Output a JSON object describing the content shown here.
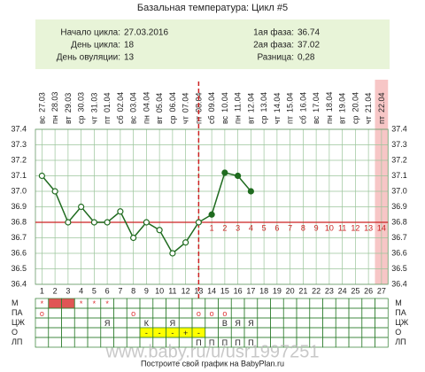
{
  "chart_data": {
    "type": "line",
    "title": "Базальная температура: Цикл #5",
    "info_left": [
      {
        "label": "Начало цикла:",
        "value": "27.03.2016"
      },
      {
        "label": "День цикла:",
        "value": 18
      },
      {
        "label": "День овуляции:",
        "value": 13
      }
    ],
    "info_right": [
      {
        "label": "1ая фаза:",
        "value": 36.74
      },
      {
        "label": "2ая фаза:",
        "value": 37.02
      },
      {
        "label": "Разница:",
        "value": "0,28"
      }
    ],
    "weekdays": [
      "вс",
      "пн",
      "вт",
      "ср",
      "чт",
      "пт",
      "сб",
      "вс",
      "пн",
      "вт",
      "ср",
      "чт",
      "пт",
      "сб",
      "вс",
      "пн",
      "вт",
      "ср",
      "чт",
      "пт",
      "сб",
      "вс",
      "пн",
      "вт",
      "ср",
      "чт",
      "пт"
    ],
    "dates": [
      "27.03",
      "28.03",
      "29.03",
      "30.03",
      "31.03",
      "01.04",
      "02.04",
      "03.04",
      "04.04",
      "05.04",
      "06.04",
      "07.04",
      "08.04",
      "09.04",
      "10.04",
      "11.04",
      "12.04",
      "13.04",
      "14.04",
      "15.04",
      "16.04",
      "17.04",
      "18.04",
      "19.04",
      "20.04",
      "21.04",
      "22.04"
    ],
    "categories": [
      1,
      2,
      3,
      4,
      5,
      6,
      7,
      8,
      9,
      10,
      11,
      12,
      13,
      14,
      15,
      16,
      17,
      18,
      19,
      20,
      21,
      22,
      23,
      24,
      25,
      26,
      27
    ],
    "series": [
      {
        "name": "Температура",
        "color": "#1f6b1f",
        "values": [
          37.1,
          37.0,
          36.8,
          36.9,
          36.8,
          36.8,
          36.87,
          36.7,
          36.8,
          36.75,
          36.6,
          36.67,
          36.8,
          36.85,
          37.12,
          37.1,
          37.0,
          null,
          null,
          null,
          null,
          null,
          null,
          null,
          null,
          null,
          null
        ]
      }
    ],
    "cover_line": 36.8,
    "cover_color": "#cc2222",
    "luteal_day_labels": [
      1,
      2,
      3,
      4,
      5,
      6,
      7,
      8,
      9,
      10,
      11,
      12,
      13,
      14
    ],
    "highlight_days": [
      27
    ],
    "highlight_color": "#f7c6c6",
    "ylim": [
      36.4,
      37.4
    ],
    "yticks": [
      36.4,
      36.5,
      36.6,
      36.7,
      36.8,
      36.9,
      {
        "value": 37,
        "label": "37.0"
      },
      37.1,
      37.2,
      37.3,
      37.4
    ],
    "grid": true
  },
  "table": {
    "rows": [
      {
        "name": "М",
        "cells": [
          "*",
          null,
          null,
          "*",
          "*",
          "*",
          null,
          null,
          null,
          null,
          null,
          null,
          null,
          null,
          null,
          null,
          null,
          null,
          null,
          null,
          null,
          null,
          null,
          null,
          null,
          null,
          null
        ],
        "fill": {
          "color": "#e05555",
          "days": [
            2,
            3
          ]
        }
      },
      {
        "name": "ПА",
        "cells": [
          "о",
          null,
          null,
          null,
          null,
          null,
          null,
          "о",
          null,
          null,
          null,
          null,
          "о",
          "о",
          "о",
          null,
          null,
          null,
          null,
          null,
          null,
          null,
          null,
          null,
          null,
          null,
          null
        ]
      },
      {
        "name": "ЦЖ",
        "cells": [
          null,
          null,
          null,
          null,
          null,
          "Я",
          null,
          null,
          "К",
          null,
          "Я",
          null,
          null,
          null,
          "В",
          "Я",
          "Я",
          null,
          null,
          null,
          null,
          null,
          null,
          null,
          null,
          null,
          null
        ]
      },
      {
        "name": "О",
        "cells": [
          null,
          null,
          null,
          null,
          null,
          null,
          null,
          null,
          "-",
          "-",
          "-",
          "+",
          "-",
          null,
          null,
          null,
          null,
          null,
          null,
          null,
          null,
          null,
          null,
          null,
          null,
          null,
          null
        ],
        "fill": {
          "color": "#ffff00",
          "days": [
            9,
            10,
            11,
            12,
            13
          ]
        }
      },
      {
        "name": "ЛП",
        "cells": [
          null,
          null,
          null,
          null,
          null,
          null,
          null,
          null,
          null,
          null,
          null,
          null,
          "П",
          "П",
          "П",
          "П",
          "П",
          null,
          null,
          null,
          null,
          null,
          null,
          null,
          null,
          null,
          null
        ]
      }
    ]
  },
  "watermark": "www.baby.ru/u/usr1997251",
  "footer": "Построите свой график на BabyPlan.ru"
}
